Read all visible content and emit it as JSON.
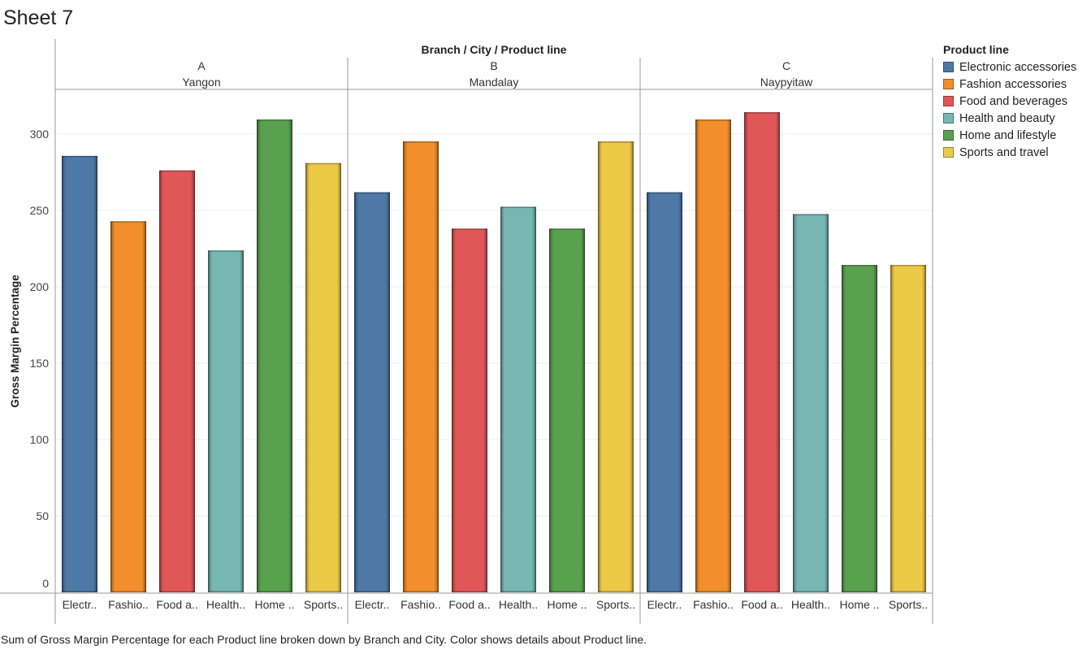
{
  "sheet": {
    "title": "Sheet 7"
  },
  "caption": "Sum of Gross Margin Percentage for each Product line broken down by Branch and City.  Color shows details about Product line.",
  "legend": {
    "title": "Product line",
    "items": [
      {
        "label": "Electronic accessories",
        "color": "#4e79a7"
      },
      {
        "label": "Fashion accessories",
        "color": "#f28e2b"
      },
      {
        "label": "Food and beverages",
        "color": "#e15759"
      },
      {
        "label": "Health and beauty",
        "color": "#76b7b2"
      },
      {
        "label": "Home and lifestyle",
        "color": "#59a14f"
      },
      {
        "label": "Sports and travel",
        "color": "#edc948"
      }
    ]
  },
  "chart_data": {
    "type": "bar",
    "header_title": "Branch / City / Product line",
    "ylabel": "Gross Margin Percentage",
    "ylim": [
      0,
      330
    ],
    "yticks": [
      0,
      50,
      100,
      150,
      200,
      250,
      300
    ],
    "grid": true,
    "categories": [
      "Electr..",
      "Fashio..",
      "Food a..",
      "Health..",
      "Home ..",
      "Sports.."
    ],
    "panels": [
      {
        "branch": "A",
        "city": "Yangon",
        "values": [
          285.7,
          242.9,
          276.2,
          223.8,
          309.5,
          281.0
        ]
      },
      {
        "branch": "B",
        "city": "Mandalay",
        "values": [
          261.9,
          295.2,
          238.1,
          252.4,
          238.1,
          295.2
        ]
      },
      {
        "branch": "C",
        "city": "Naypyitaw",
        "values": [
          261.9,
          309.5,
          314.3,
          247.6,
          214.3,
          214.3
        ]
      }
    ]
  }
}
